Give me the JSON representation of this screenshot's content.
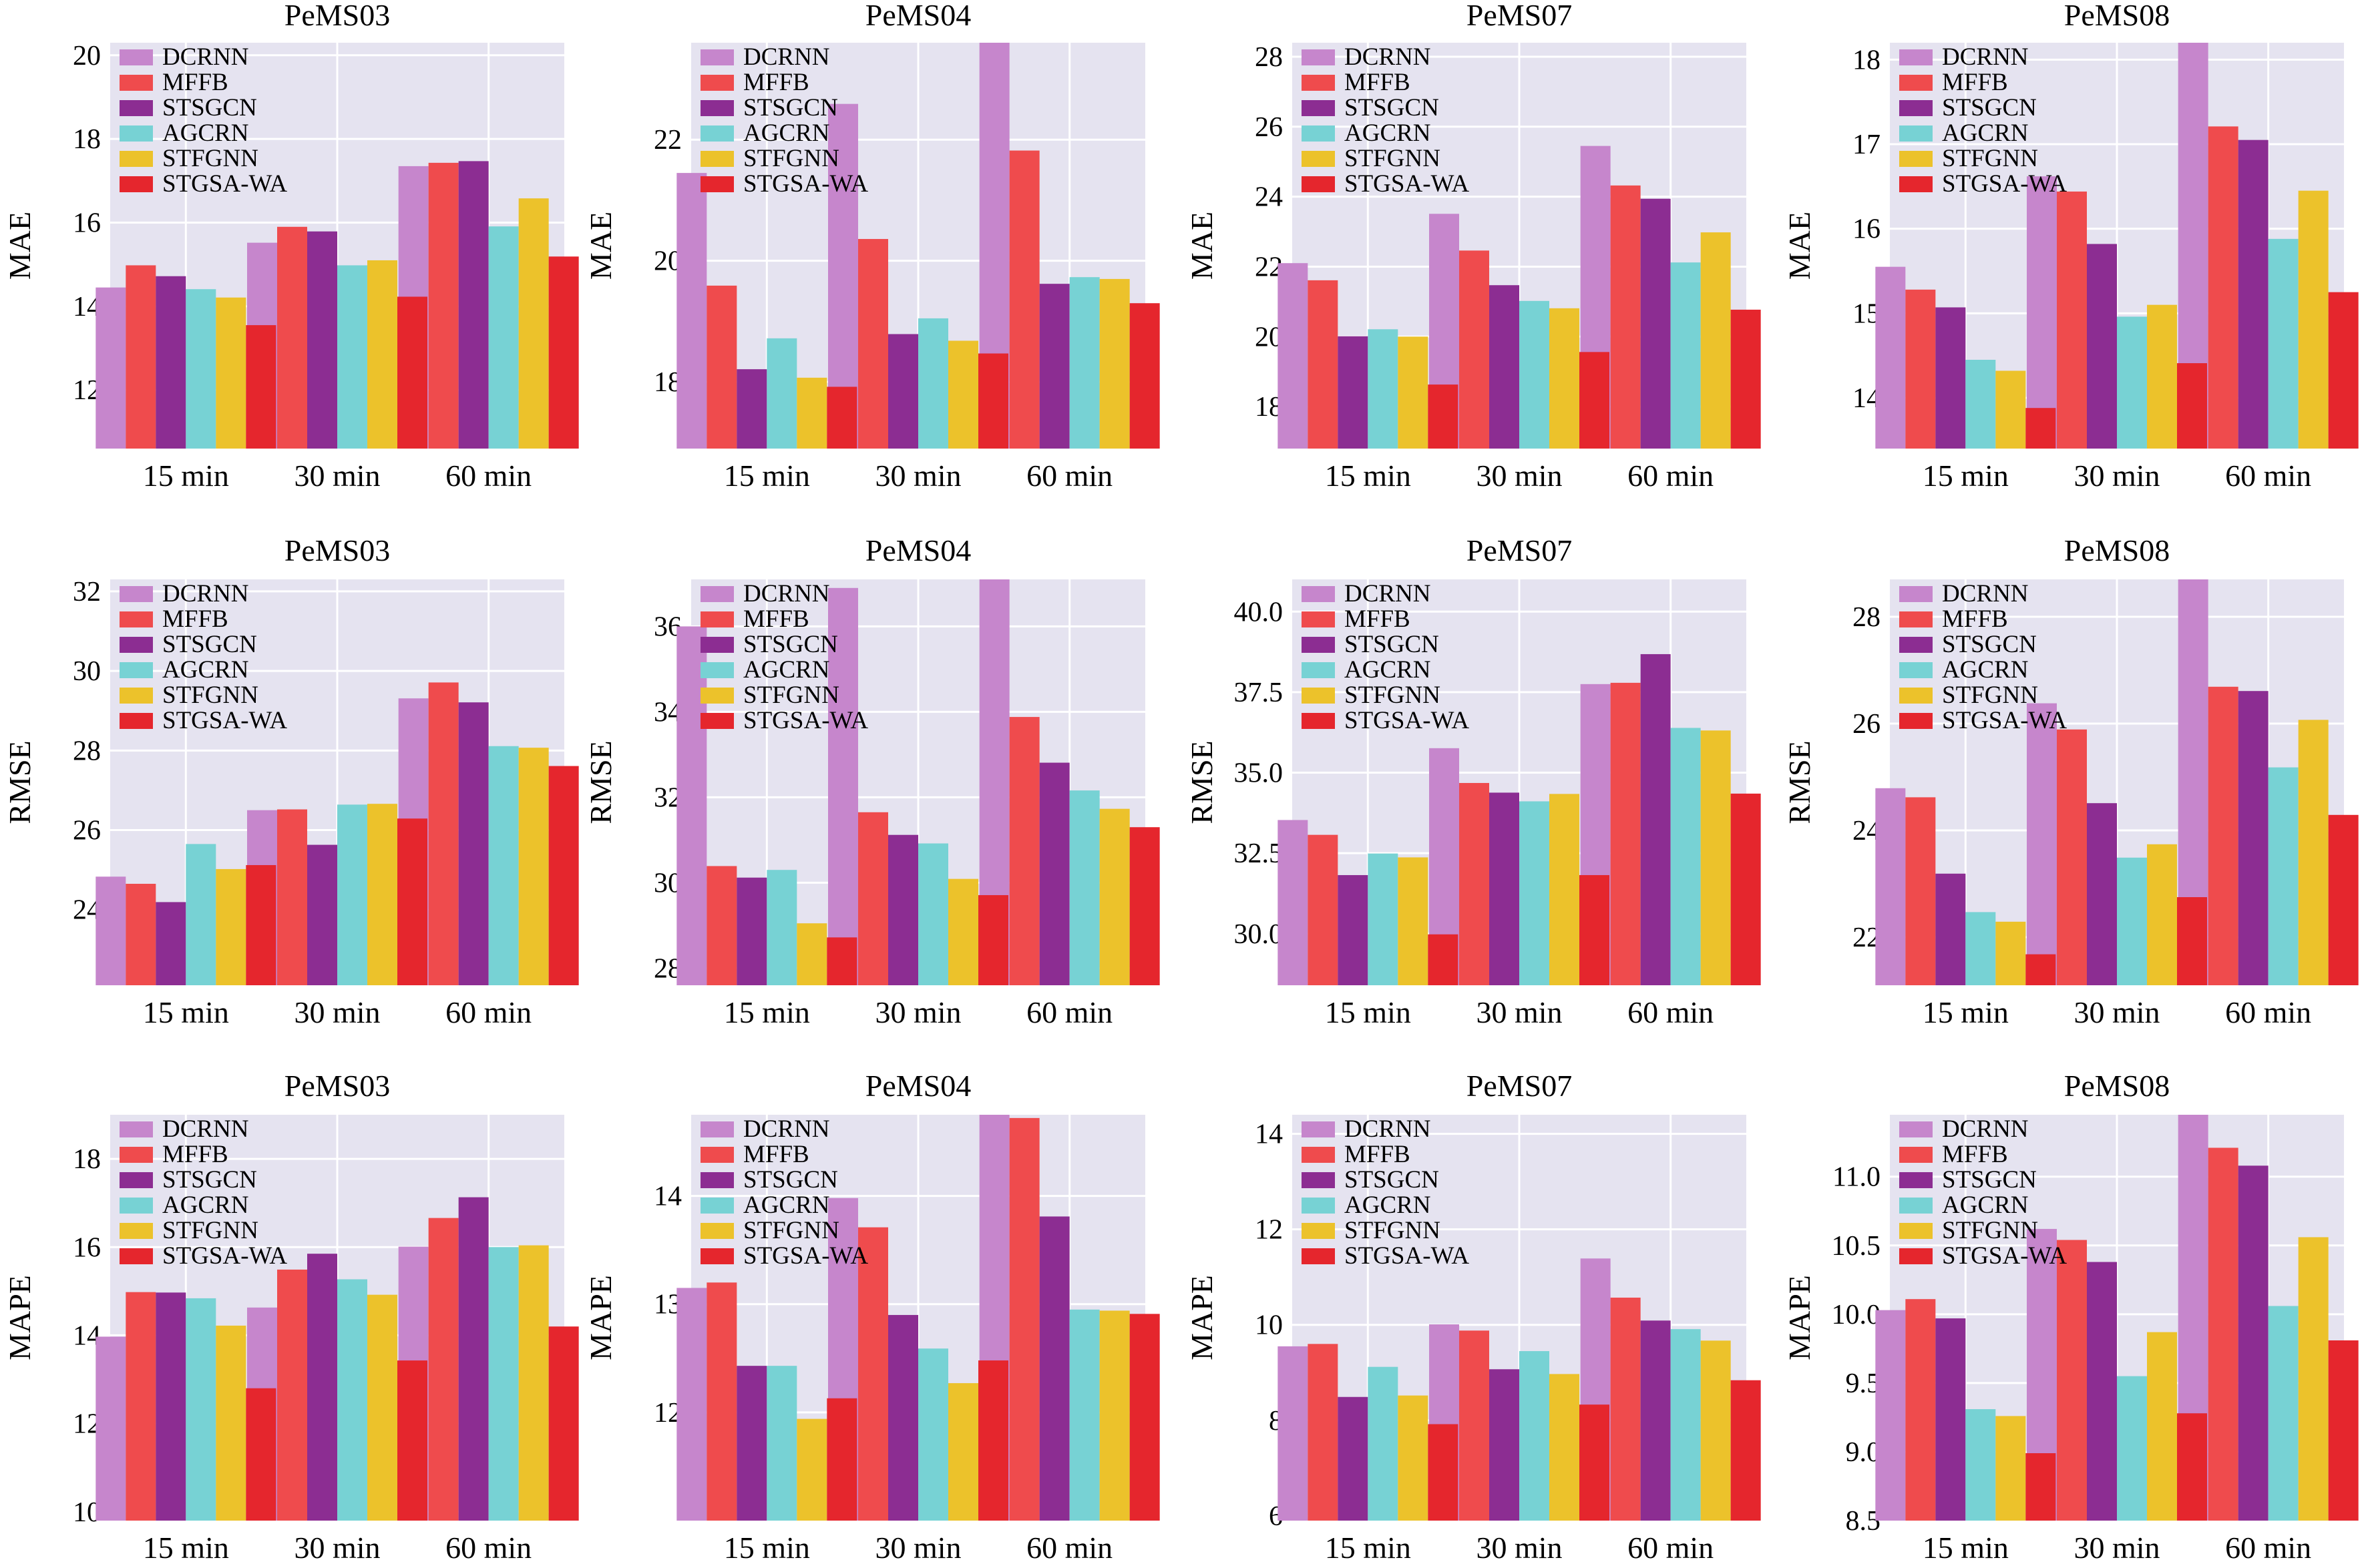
{
  "colors": {
    "panel_bg": "#e5e3f0",
    "grid": "#ffffff",
    "series": [
      "#c686cc",
      "#ef4b4d",
      "#8c2d92",
      "#77d2d4",
      "#ecc22b",
      "#e5262d"
    ]
  },
  "chart_data": [
    {
      "type": "bar",
      "title": "PeMS03",
      "ylabel": "MAE",
      "categories": [
        "15 min",
        "30 min",
        "60 min"
      ],
      "ylim": [
        10.6,
        20.3
      ],
      "yticks": [
        12,
        14,
        16,
        18,
        20
      ],
      "yticklabels": [
        "12",
        "14",
        "16",
        "18",
        "20"
      ],
      "grid": true,
      "legend_position": "top-left",
      "series": [
        {
          "name": "DCRNN",
          "values": [
            14.45,
            15.52,
            17.35
          ]
        },
        {
          "name": "MFFB",
          "values": [
            14.98,
            15.9,
            17.43
          ]
        },
        {
          "name": "STSGCN",
          "values": [
            14.72,
            15.79,
            17.47
          ]
        },
        {
          "name": "AGCRN",
          "values": [
            14.41,
            14.98,
            15.91
          ]
        },
        {
          "name": "STFGNN",
          "values": [
            14.21,
            15.1,
            16.58
          ]
        },
        {
          "name": "STGSA-WA",
          "values": [
            13.55,
            14.23,
            15.19
          ]
        }
      ]
    },
    {
      "type": "bar",
      "title": "PeMS04",
      "ylabel": "MAE",
      "categories": [
        "15 min",
        "30 min",
        "60 min"
      ],
      "ylim": [
        16.9,
        23.6
      ],
      "yticks": [
        18,
        20,
        22
      ],
      "yticklabels": [
        "18",
        "20",
        "22"
      ],
      "grid": true,
      "legend_position": "top-left",
      "series": [
        {
          "name": "DCRNN",
          "values": [
            21.45,
            22.59,
            23.6
          ]
        },
        {
          "name": "MFFB",
          "values": [
            19.59,
            20.36,
            21.82
          ]
        },
        {
          "name": "STSGCN",
          "values": [
            18.21,
            18.79,
            19.62
          ]
        },
        {
          "name": "AGCRN",
          "values": [
            18.72,
            19.05,
            19.73
          ]
        },
        {
          "name": "STFGNN",
          "values": [
            18.07,
            18.68,
            19.7
          ]
        },
        {
          "name": "STGSA-WA",
          "values": [
            17.92,
            18.47,
            19.3
          ]
        }
      ]
    },
    {
      "type": "bar",
      "title": "PeMS07",
      "ylabel": "MAE",
      "categories": [
        "15 min",
        "30 min",
        "60 min"
      ],
      "ylim": [
        16.8,
        28.4
      ],
      "yticks": [
        18,
        20,
        22,
        24,
        26,
        28
      ],
      "yticklabels": [
        "18",
        "20",
        "22",
        "24",
        "26",
        "28"
      ],
      "grid": true,
      "legend_position": "top-left",
      "series": [
        {
          "name": "DCRNN",
          "values": [
            22.1,
            23.51,
            25.45
          ]
        },
        {
          "name": "MFFB",
          "values": [
            21.61,
            22.46,
            24.32
          ]
        },
        {
          "name": "STSGCN",
          "values": [
            20.01,
            21.47,
            23.94
          ]
        },
        {
          "name": "AGCRN",
          "values": [
            20.21,
            21.02,
            22.12
          ]
        },
        {
          "name": "STFGNN",
          "values": [
            20.0,
            20.81,
            22.98
          ]
        },
        {
          "name": "STGSA-WA",
          "values": [
            18.63,
            19.56,
            20.77
          ]
        }
      ]
    },
    {
      "type": "bar",
      "title": "PeMS08",
      "ylabel": "MAE",
      "categories": [
        "15 min",
        "30 min",
        "60 min"
      ],
      "ylim": [
        13.4,
        18.2
      ],
      "yticks": [
        14,
        15,
        16,
        17,
        18
      ],
      "yticklabels": [
        "14",
        "15",
        "16",
        "17",
        "18"
      ],
      "grid": true,
      "legend_position": "top-left",
      "series": [
        {
          "name": "DCRNN",
          "values": [
            15.55,
            16.62,
            18.2
          ]
        },
        {
          "name": "MFFB",
          "values": [
            15.28,
            16.44,
            17.21
          ]
        },
        {
          "name": "STSGCN",
          "values": [
            15.07,
            15.82,
            17.05
          ]
        },
        {
          "name": "AGCRN",
          "values": [
            14.45,
            14.96,
            15.88
          ]
        },
        {
          "name": "STFGNN",
          "values": [
            14.32,
            15.1,
            16.45
          ]
        },
        {
          "name": "STGSA-WA",
          "values": [
            13.88,
            14.41,
            15.25
          ]
        }
      ]
    },
    {
      "type": "bar",
      "title": "PeMS03",
      "ylabel": "RMSE",
      "categories": [
        "15 min",
        "30 min",
        "60 min"
      ],
      "ylim": [
        22.1,
        32.3
      ],
      "yticks": [
        24,
        26,
        28,
        30,
        32
      ],
      "yticklabels": [
        "24",
        "26",
        "28",
        "30",
        "32"
      ],
      "grid": true,
      "legend_position": "top-left",
      "series": [
        {
          "name": "DCRNN",
          "values": [
            24.83,
            26.5,
            29.31
          ]
        },
        {
          "name": "MFFB",
          "values": [
            24.65,
            26.52,
            29.71
          ]
        },
        {
          "name": "STSGCN",
          "values": [
            24.19,
            25.63,
            29.21
          ]
        },
        {
          "name": "AGCRN",
          "values": [
            25.65,
            26.64,
            28.11
          ]
        },
        {
          "name": "STFGNN",
          "values": [
            25.02,
            26.66,
            28.07
          ]
        },
        {
          "name": "STGSA-WA",
          "values": [
            25.12,
            26.29,
            27.61
          ]
        }
      ]
    },
    {
      "type": "bar",
      "title": "PeMS04",
      "ylabel": "RMSE",
      "categories": [
        "15 min",
        "30 min",
        "60 min"
      ],
      "ylim": [
        27.6,
        37.1
      ],
      "yticks": [
        28,
        30,
        32,
        34,
        36
      ],
      "yticklabels": [
        "28",
        "30",
        "32",
        "34",
        "36"
      ],
      "grid": true,
      "legend_position": "top-left",
      "series": [
        {
          "name": "DCRNN",
          "values": [
            36.0,
            36.9,
            37.1
          ]
        },
        {
          "name": "MFFB",
          "values": [
            30.39,
            31.65,
            33.88
          ]
        },
        {
          "name": "STSGCN",
          "values": [
            30.12,
            31.12,
            32.81
          ]
        },
        {
          "name": "AGCRN",
          "values": [
            30.3,
            30.92,
            32.16
          ]
        },
        {
          "name": "STFGNN",
          "values": [
            29.05,
            30.09,
            31.73
          ]
        },
        {
          "name": "STGSA-WA",
          "values": [
            28.72,
            29.71,
            31.3
          ]
        }
      ]
    },
    {
      "type": "bar",
      "title": "PeMS07",
      "ylabel": "RMSE",
      "categories": [
        "15 min",
        "30 min",
        "60 min"
      ],
      "ylim": [
        28.4,
        41.0
      ],
      "yticks": [
        30.0,
        32.5,
        35.0,
        37.5,
        40.0
      ],
      "yticklabels": [
        "30.0",
        "32.5",
        "35.0",
        "37.5",
        "40.0"
      ],
      "grid": true,
      "legend_position": "top-left",
      "series": [
        {
          "name": "DCRNN",
          "values": [
            33.53,
            35.76,
            37.75
          ]
        },
        {
          "name": "MFFB",
          "values": [
            33.07,
            34.68,
            37.79
          ]
        },
        {
          "name": "STSGCN",
          "values": [
            31.82,
            34.38,
            38.68
          ]
        },
        {
          "name": "AGCRN",
          "values": [
            32.49,
            34.11,
            36.39
          ]
        },
        {
          "name": "STFGNN",
          "values": [
            32.37,
            34.34,
            36.31
          ]
        },
        {
          "name": "STGSA-WA",
          "values": [
            29.98,
            31.82,
            34.35
          ]
        }
      ]
    },
    {
      "type": "bar",
      "title": "PeMS08",
      "ylabel": "RMSE",
      "categories": [
        "15 min",
        "30 min",
        "60 min"
      ],
      "ylim": [
        21.1,
        28.7
      ],
      "yticks": [
        22,
        24,
        26,
        28
      ],
      "yticklabels": [
        "22",
        "24",
        "26",
        "28"
      ],
      "grid": true,
      "legend_position": "top-left",
      "series": [
        {
          "name": "DCRNN",
          "values": [
            24.79,
            26.38,
            28.7
          ]
        },
        {
          "name": "MFFB",
          "values": [
            24.62,
            25.89,
            26.69
          ]
        },
        {
          "name": "STSGCN",
          "values": [
            23.19,
            24.51,
            26.61
          ]
        },
        {
          "name": "AGCRN",
          "values": [
            22.47,
            23.49,
            25.18
          ]
        },
        {
          "name": "STFGNN",
          "values": [
            22.29,
            23.74,
            26.07
          ]
        },
        {
          "name": "STGSA-WA",
          "values": [
            21.68,
            22.75,
            24.29
          ]
        }
      ]
    },
    {
      "type": "bar",
      "title": "PeMS03",
      "ylabel": "MAPE",
      "categories": [
        "15 min",
        "30 min",
        "60 min"
      ],
      "ylim": [
        9.8,
        19.0
      ],
      "yticks": [
        10,
        12,
        14,
        16,
        18
      ],
      "yticklabels": [
        "10",
        "12",
        "14",
        "16",
        "18"
      ],
      "grid": true,
      "legend_position": "top-left",
      "series": [
        {
          "name": "DCRNN",
          "values": [
            13.97,
            14.63,
            16.01
          ]
        },
        {
          "name": "MFFB",
          "values": [
            14.98,
            15.49,
            16.66
          ]
        },
        {
          "name": "STSGCN",
          "values": [
            14.97,
            15.85,
            17.13
          ]
        },
        {
          "name": "AGCRN",
          "values": [
            14.84,
            15.27,
            16.0
          ]
        },
        {
          "name": "STFGNN",
          "values": [
            14.22,
            14.92,
            16.04
          ]
        },
        {
          "name": "STGSA-WA",
          "values": [
            12.8,
            13.43,
            14.2
          ]
        }
      ]
    },
    {
      "type": "bar",
      "title": "PeMS04",
      "ylabel": "MAPE",
      "categories": [
        "15 min",
        "30 min",
        "60 min"
      ],
      "ylim": [
        11.0,
        14.75
      ],
      "yticks": [
        12,
        13,
        14
      ],
      "yticklabels": [
        "12",
        "13",
        "14"
      ],
      "grid": true,
      "legend_position": "top-left",
      "series": [
        {
          "name": "DCRNN",
          "values": [
            13.15,
            13.98,
            14.75
          ]
        },
        {
          "name": "MFFB",
          "values": [
            13.2,
            13.71,
            14.72
          ]
        },
        {
          "name": "STSGCN",
          "values": [
            12.43,
            12.9,
            13.81
          ]
        },
        {
          "name": "AGCRN",
          "values": [
            12.43,
            12.59,
            12.95
          ]
        },
        {
          "name": "STFGNN",
          "values": [
            11.94,
            12.27,
            12.94
          ]
        },
        {
          "name": "STGSA-WA",
          "values": [
            12.13,
            12.48,
            12.91
          ]
        }
      ]
    },
    {
      "type": "bar",
      "title": "PeMS07",
      "ylabel": "MAPE",
      "categories": [
        "15 min",
        "30 min",
        "60 min"
      ],
      "ylim": [
        5.9,
        14.4
      ],
      "yticks": [
        6,
        8,
        10,
        12,
        14
      ],
      "yticklabels": [
        "6",
        "8",
        "10",
        "12",
        "14"
      ],
      "grid": true,
      "legend_position": "top-left",
      "series": [
        {
          "name": "DCRNN",
          "values": [
            9.55,
            10.01,
            11.39
          ]
        },
        {
          "name": "MFFB",
          "values": [
            9.6,
            9.88,
            10.57
          ]
        },
        {
          "name": "STSGCN",
          "values": [
            8.49,
            9.07,
            10.09
          ]
        },
        {
          "name": "AGCRN",
          "values": [
            9.12,
            9.45,
            9.91
          ]
        },
        {
          "name": "STFGNN",
          "values": [
            8.52,
            8.97,
            9.67
          ]
        },
        {
          "name": "STGSA-WA",
          "values": [
            7.92,
            8.33,
            8.84
          ]
        }
      ]
    },
    {
      "type": "bar",
      "title": "PeMS08",
      "ylabel": "MAPE",
      "categories": [
        "15 min",
        "30 min",
        "60 min"
      ],
      "ylim": [
        8.5,
        11.45
      ],
      "yticks": [
        8.5,
        9.0,
        9.5,
        10.0,
        10.5,
        11.0
      ],
      "yticklabels": [
        "8.5",
        "9.0",
        "9.5",
        "10.0",
        "10.5",
        "11.0"
      ],
      "grid": true,
      "legend_position": "top-left",
      "series": [
        {
          "name": "DCRNN",
          "values": [
            10.03,
            10.62,
            11.45
          ]
        },
        {
          "name": "MFFB",
          "values": [
            10.11,
            10.54,
            11.21
          ]
        },
        {
          "name": "STSGCN",
          "values": [
            9.97,
            10.38,
            11.08
          ]
        },
        {
          "name": "AGCRN",
          "values": [
            9.31,
            9.55,
            10.06
          ]
        },
        {
          "name": "STFGNN",
          "values": [
            9.26,
            9.87,
            10.56
          ]
        },
        {
          "name": "STGSA-WA",
          "values": [
            8.99,
            9.28,
            9.81
          ]
        }
      ]
    }
  ]
}
